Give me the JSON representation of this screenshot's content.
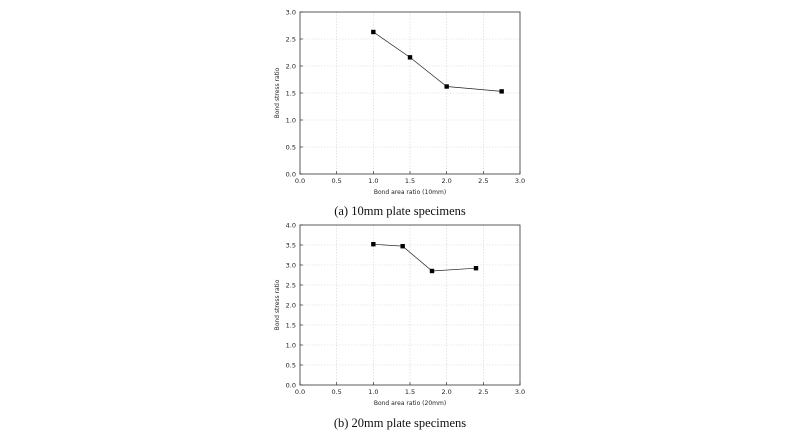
{
  "chart_data": [
    {
      "type": "line",
      "xlabel": "Bond area ratio (10mm)",
      "ylabel": "Bond stress ratio",
      "caption": "(a)  10mm  plate  specimens",
      "xlim": [
        0.0,
        3.0
      ],
      "ylim": [
        0.0,
        3.0
      ],
      "xticks": [
        "0.0",
        "0.5",
        "1.0",
        "1.5",
        "2.0",
        "2.5",
        "3.0"
      ],
      "yticks": [
        "0.0",
        "0.5",
        "1.0",
        "1.5",
        "2.0",
        "2.5",
        "3.0"
      ],
      "grid": true,
      "x": [
        1.0,
        1.5,
        2.0,
        2.75
      ],
      "y": [
        2.63,
        2.16,
        1.62,
        1.53
      ]
    },
    {
      "type": "line",
      "xlabel": "Bond area ratio (20mm)",
      "ylabel": "Bond stress ratio",
      "caption": "(b)  20mm  plate  specimens",
      "xlim": [
        0.0,
        3.0
      ],
      "ylim": [
        0.0,
        4.0
      ],
      "xticks": [
        "0.0",
        "0.5",
        "1.0",
        "1.5",
        "2.0",
        "2.5",
        "3.0"
      ],
      "yticks": [
        "0.0",
        "0.5",
        "1.0",
        "1.5",
        "2.0",
        "2.5",
        "3.0",
        "3.5",
        "4.0"
      ],
      "grid": true,
      "x": [
        1.0,
        1.4,
        1.8,
        2.4
      ],
      "y": [
        3.52,
        3.47,
        2.85,
        2.92
      ]
    }
  ]
}
